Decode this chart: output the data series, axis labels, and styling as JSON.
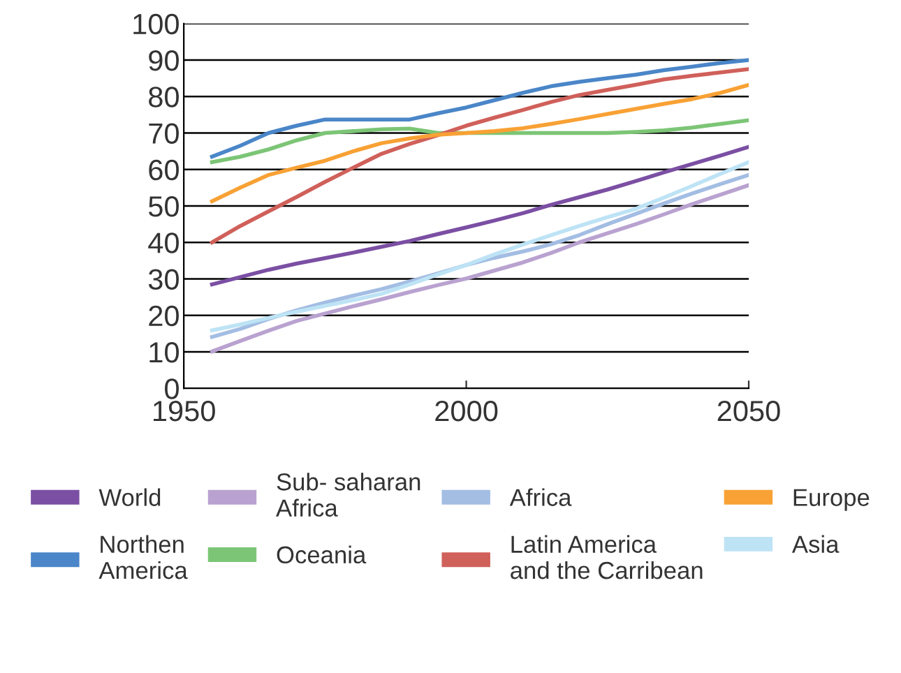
{
  "chart_data": {
    "type": "line",
    "x": [
      1955,
      1960,
      1965,
      1970,
      1975,
      1980,
      1985,
      1990,
      1995,
      2000,
      2005,
      2010,
      2015,
      2020,
      2025,
      2030,
      2035,
      2040,
      2045,
      2050
    ],
    "series": [
      {
        "name": "World",
        "color": "#7b4fa3",
        "values": [
          28.5,
          30.5,
          32.5,
          34.2,
          35.7,
          37.2,
          38.8,
          40.4,
          42.3,
          44.1,
          46,
          48,
          50.3,
          52.4,
          54.5,
          56.8,
          59.2,
          61.5,
          63.8,
          66.2
        ]
      },
      {
        "name": "Northen\nAmerica",
        "color": "#4a86c8",
        "values": [
          63.5,
          66.5,
          70,
          72,
          73.7,
          73.7,
          73.7,
          73.7,
          75.4,
          77,
          79,
          81,
          82.8,
          84,
          85,
          86,
          87.2,
          88.2,
          89.2,
          90
        ]
      },
      {
        "name": "Sub- saharan\nAfrica",
        "color": "#b9a2d0",
        "values": [
          10.1,
          13,
          15.8,
          18.5,
          20.5,
          22.5,
          24.4,
          26.4,
          28.3,
          30.1,
          32.3,
          34.5,
          37.1,
          40,
          42.5,
          45,
          47.7,
          50.5,
          53.1,
          55.7
        ]
      },
      {
        "name": "Oceania",
        "color": "#7cc576",
        "values": [
          62,
          63.5,
          65.5,
          68,
          70,
          70.5,
          71,
          71.2,
          70,
          70,
          70,
          70,
          70,
          70,
          70,
          70.3,
          70.7,
          71.5,
          72.5,
          73.5
        ]
      },
      {
        "name": "Africa",
        "color": "#a3bde3",
        "values": [
          14.1,
          16.3,
          19,
          21.4,
          23.5,
          25.4,
          27.2,
          29.3,
          31.5,
          33.8,
          35.8,
          37.5,
          39.5,
          42,
          45,
          47.8,
          50.7,
          53.4,
          56,
          58.5
        ]
      },
      {
        "name": "Latin America\nand the Carribean",
        "color": "#d0605a",
        "values": [
          40,
          44.5,
          48.5,
          52.5,
          56.6,
          60.5,
          64.3,
          67,
          69.4,
          72,
          74.2,
          76.3,
          78.5,
          80.4,
          81.8,
          83.2,
          84.7,
          85.7,
          86.6,
          87.5
        ]
      },
      {
        "name": "Europe",
        "color": "#f8a134",
        "values": [
          51.3,
          55,
          58.5,
          60.5,
          62.4,
          65,
          67.2,
          68.5,
          69.5,
          70,
          70.5,
          71.3,
          72.5,
          73.8,
          75.2,
          76.6,
          78,
          79.3,
          81,
          83.2
        ]
      },
      {
        "name": "Asia",
        "color": "#bde3f5",
        "values": [
          15.9,
          17.5,
          19.3,
          21,
          22.6,
          24.2,
          25.9,
          28.5,
          31.2,
          33.8,
          36.7,
          39.4,
          42,
          44.5,
          46.9,
          49.2,
          52.3,
          55.5,
          58.8,
          62
        ]
      }
    ],
    "xlim": [
      1950,
      2050
    ],
    "xticks": [
      1950,
      2000,
      2050
    ],
    "ylim": [
      0,
      100
    ],
    "yticks": [
      0,
      10,
      20,
      30,
      40,
      50,
      60,
      70,
      80,
      90,
      100
    ],
    "grid": "y",
    "legend": "bottom",
    "marker": "none",
    "line_style": "solid"
  }
}
